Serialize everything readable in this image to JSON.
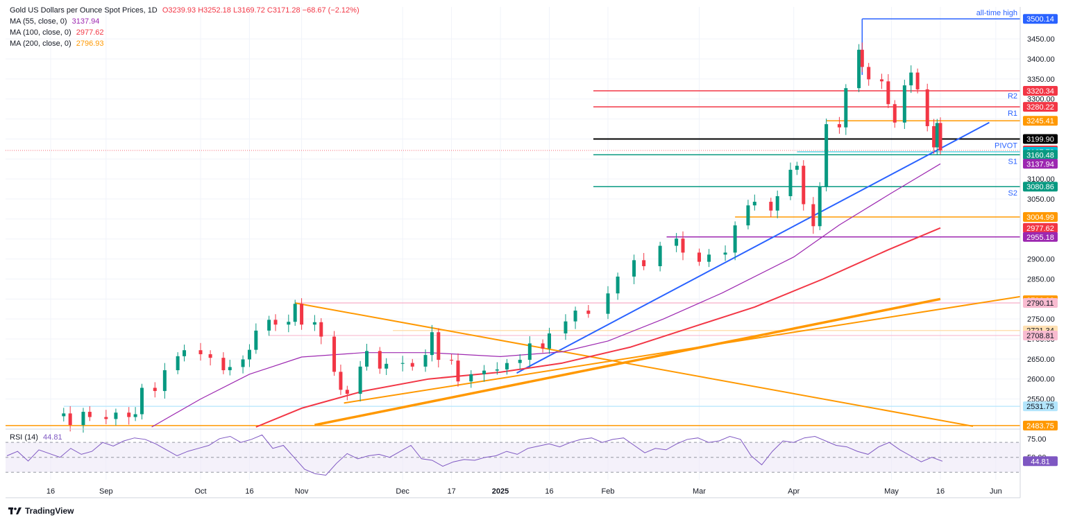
{
  "legend": {
    "title": "Gold US Dollars per Ounce Spot Prices, 1D",
    "ohlc": "O3239.93 H3252.18 L3169.72 C3171.28 −68.67 (−2.12%)",
    "ma55_label": "MA (55, close, 0)",
    "ma55_value": "3137.94",
    "ma100_label": "MA (100, close, 0)",
    "ma100_value": "2977.62",
    "ma200_label": "MA (200, close, 0)",
    "ma200_value": "2796.93",
    "rsi_label": "RSI (14)",
    "rsi_value": "44.81"
  },
  "brand": "TradingView",
  "colors": {
    "up": "#089981",
    "down": "#f23645",
    "ma55": "#9c27b0",
    "ma100": "#f23645",
    "ma200": "#ff9800",
    "trend_blue": "#2962ff",
    "orange": "#ff9800",
    "teal": "#089981",
    "pink": "#f8bbd0",
    "cyan": "#00bcd4",
    "rsi": "#7e57c2"
  },
  "chart_data": {
    "type": "candlestick",
    "title": "Gold US Dollars per Ounce Spot Prices, 1D",
    "y_range": [
      2480,
      3530
    ],
    "y_ticks": [
      2550,
      2600,
      2650,
      2700,
      2750,
      2800,
      2850,
      2900,
      2950,
      3000,
      3050,
      3100,
      3150,
      3200,
      3250,
      3300,
      3350,
      3400,
      3450
    ],
    "x_ticks": [
      {
        "label": "16",
        "date": "2024-08-16"
      },
      {
        "label": "Sep",
        "date": "2024-09-02"
      },
      {
        "label": "Oct",
        "date": "2024-10-01"
      },
      {
        "label": "16",
        "date": "2024-10-16"
      },
      {
        "label": "Nov",
        "date": "2024-11-01"
      },
      {
        "label": "Dec",
        "date": "2024-12-02"
      },
      {
        "label": "17",
        "date": "2024-12-17"
      },
      {
        "label": "2025",
        "date": "2025-01-01"
      },
      {
        "label": "16",
        "date": "2025-01-16"
      },
      {
        "label": "Feb",
        "date": "2025-02-03"
      },
      {
        "label": "Mar",
        "date": "2025-03-03"
      },
      {
        "label": "Apr",
        "date": "2025-04-01"
      },
      {
        "label": "May",
        "date": "2025-05-01"
      },
      {
        "label": "16",
        "date": "2025-05-16"
      },
      {
        "label": "Jun",
        "date": "2025-06-02"
      }
    ],
    "closes": [
      [
        "2024-08-16",
        2507
      ],
      [
        "2024-08-20",
        2514
      ],
      [
        "2024-08-22",
        2485
      ],
      [
        "2024-08-26",
        2518
      ],
      [
        "2024-08-28",
        2505
      ],
      [
        "2024-09-02",
        2500
      ],
      [
        "2024-09-05",
        2516
      ],
      [
        "2024-09-09",
        2505
      ],
      [
        "2024-09-11",
        2512
      ],
      [
        "2024-09-13",
        2578
      ],
      [
        "2024-09-17",
        2570
      ],
      [
        "2024-09-20",
        2622
      ],
      [
        "2024-09-24",
        2657
      ],
      [
        "2024-09-26",
        2672
      ],
      [
        "2024-10-01",
        2662
      ],
      [
        "2024-10-04",
        2653
      ],
      [
        "2024-10-08",
        2622
      ],
      [
        "2024-10-10",
        2630
      ],
      [
        "2024-10-14",
        2649
      ],
      [
        "2024-10-16",
        2673
      ],
      [
        "2024-10-18",
        2721
      ],
      [
        "2024-10-22",
        2748
      ],
      [
        "2024-10-24",
        2736
      ],
      [
        "2024-10-28",
        2743
      ],
      [
        "2024-10-30",
        2788
      ],
      [
        "2024-11-01",
        2736
      ],
      [
        "2024-11-05",
        2742
      ],
      [
        "2024-11-07",
        2706
      ],
      [
        "2024-11-11",
        2618
      ],
      [
        "2024-11-13",
        2573
      ],
      [
        "2024-11-15",
        2563
      ],
      [
        "2024-11-19",
        2631
      ],
      [
        "2024-11-21",
        2670
      ],
      [
        "2024-11-25",
        2626
      ],
      [
        "2024-11-27",
        2638
      ],
      [
        "2024-12-02",
        2640
      ],
      [
        "2024-12-05",
        2631
      ],
      [
        "2024-12-09",
        2660
      ],
      [
        "2024-12-11",
        2717
      ],
      [
        "2024-12-13",
        2648
      ],
      [
        "2024-12-17",
        2646
      ],
      [
        "2024-12-19",
        2594
      ],
      [
        "2024-12-23",
        2612
      ],
      [
        "2024-12-27",
        2621
      ],
      [
        "2024-12-31",
        2624
      ],
      [
        "2025-01-03",
        2640
      ],
      [
        "2025-01-07",
        2648
      ],
      [
        "2025-01-10",
        2689
      ],
      [
        "2025-01-14",
        2676
      ],
      [
        "2025-01-16",
        2714
      ],
      [
        "2025-01-21",
        2744
      ],
      [
        "2025-01-24",
        2771
      ],
      [
        "2025-01-28",
        2763
      ],
      [
        "2025-02-03",
        2814
      ],
      [
        "2025-02-06",
        2856
      ],
      [
        "2025-02-11",
        2897
      ],
      [
        "2025-02-14",
        2882
      ],
      [
        "2025-02-19",
        2933
      ],
      [
        "2025-02-24",
        2951
      ],
      [
        "2025-02-26",
        2916
      ],
      [
        "2025-03-03",
        2893
      ],
      [
        "2025-03-06",
        2911
      ],
      [
        "2025-03-11",
        2916
      ],
      [
        "2025-03-14",
        2984
      ],
      [
        "2025-03-18",
        3034
      ],
      [
        "2025-03-20",
        3043
      ],
      [
        "2025-03-25",
        3021
      ],
      [
        "2025-03-27",
        3057
      ],
      [
        "2025-03-31",
        3123
      ],
      [
        "2025-04-02",
        3133
      ],
      [
        "2025-04-04",
        3037
      ],
      [
        "2025-04-07",
        2982
      ],
      [
        "2025-04-09",
        3082
      ],
      [
        "2025-04-11",
        3237
      ],
      [
        "2025-04-15",
        3229
      ],
      [
        "2025-04-17",
        3327
      ],
      [
        "2025-04-21",
        3423
      ],
      [
        "2025-04-22",
        3380
      ],
      [
        "2025-04-24",
        3349
      ],
      [
        "2025-04-28",
        3344
      ],
      [
        "2025-04-30",
        3287
      ],
      [
        "2025-05-02",
        3241
      ],
      [
        "2025-05-05",
        3334
      ],
      [
        "2025-05-07",
        3366
      ],
      [
        "2025-05-09",
        3324
      ],
      [
        "2025-05-12",
        3232
      ],
      [
        "2025-05-14",
        3179
      ],
      [
        "2025-05-15",
        3240
      ],
      [
        "2025-05-16",
        3171
      ]
    ],
    "candles_note": "daily OHLC candles; closes above are approximate, read from the chart",
    "moving_averages": [
      {
        "name": "MA (55, close, 0)",
        "last": 3137.94
      },
      {
        "name": "MA (100, close, 0)",
        "last": 2977.62
      },
      {
        "name": "MA (200, close, 0)",
        "last": 2796.93
      }
    ],
    "horizontal_levels": [
      {
        "value": 3500.14,
        "label": "all-time high"
      },
      {
        "value": 3320.34,
        "label": "R2"
      },
      {
        "value": 3280.22,
        "label": "R1"
      },
      {
        "value": 3245.41
      },
      {
        "value": 3199.9,
        "label": "PIVOT"
      },
      {
        "value": 3167.78
      },
      {
        "value": 3160.48,
        "label": "S1"
      },
      {
        "value": 3080.86,
        "label": "S2"
      },
      {
        "value": 3004.99
      },
      {
        "value": 2955.18
      },
      {
        "value": 2790.11
      },
      {
        "value": 2721.34
      },
      {
        "value": 2708.81
      },
      {
        "value": 2531.75
      },
      {
        "value": 2483.75
      }
    ],
    "price_labels": [
      {
        "value": 3500.14,
        "text": "3500.14",
        "color": "#2962ff"
      },
      {
        "value": 3320.34,
        "text": "3320.34",
        "color": "#f23645"
      },
      {
        "value": 3280.22,
        "text": "3280.22",
        "color": "#f23645"
      },
      {
        "value": 3245.41,
        "text": "3245.41",
        "color": "#ff9800"
      },
      {
        "value": 3199.9,
        "text": "3199.90",
        "color": "#000000"
      },
      {
        "value": 3171.28,
        "text": "3171.28",
        "color": "#f23645"
      },
      {
        "value": 3167.78,
        "text": "3167.78",
        "color": "#00bcd4"
      },
      {
        "value": 3160.48,
        "text": "3160.48",
        "color": "#089981"
      },
      {
        "value": 3137.94,
        "text": "3137.94",
        "color": "#9c27b0"
      },
      {
        "value": 3080.86,
        "text": "3080.86",
        "color": "#089981"
      },
      {
        "value": 3004.99,
        "text": "3004.99",
        "color": "#ff9800"
      },
      {
        "value": 2977.62,
        "text": "2977.62",
        "color": "#f23645"
      },
      {
        "value": 2955.18,
        "text": "2955.18",
        "color": "#9c27b0"
      },
      {
        "value": 2796.93,
        "text": "2796.93",
        "color": "#ff9800"
      },
      {
        "value": 2790.11,
        "text": "2790.11",
        "color": "#f8bbd0"
      },
      {
        "value": 2721.34,
        "text": "2721.34",
        "color": "#ffe0b2"
      },
      {
        "value": 2708.81,
        "text": "2708.81",
        "color": "#f8bbd0"
      },
      {
        "value": 2531.75,
        "text": "2531.75",
        "color": "#b3e5fc"
      },
      {
        "value": 2483.75,
        "text": "2483.75",
        "color": "#ff9800"
      }
    ],
    "level_tags": [
      "all-time high",
      "R2",
      "R1",
      "PIVOT",
      "S1",
      "S2"
    ],
    "rsi": {
      "name": "RSI (14)",
      "last": 44.81,
      "range": [
        20,
        85
      ],
      "y_ticks": [
        75.0,
        50.0
      ],
      "bands": [
        70,
        50,
        30
      ],
      "values": [
        52,
        58,
        45,
        60,
        55,
        50,
        62,
        54,
        58,
        70,
        65,
        72,
        76,
        74,
        68,
        60,
        52,
        58,
        62,
        66,
        75,
        78,
        70,
        74,
        80,
        62,
        66,
        50,
        34,
        28,
        26,
        42,
        55,
        48,
        52,
        54,
        50,
        58,
        66,
        48,
        46,
        38,
        44,
        47,
        46,
        50,
        52,
        58,
        54,
        62,
        65,
        68,
        64,
        70,
        74,
        76,
        70,
        74,
        76,
        66,
        56,
        62,
        60,
        68,
        74,
        76,
        70,
        72,
        78,
        74,
        52,
        40,
        58,
        72,
        70,
        76,
        78,
        72,
        66,
        64,
        58,
        54,
        64,
        70,
        60,
        52,
        44,
        50,
        44.81
      ]
    }
  }
}
